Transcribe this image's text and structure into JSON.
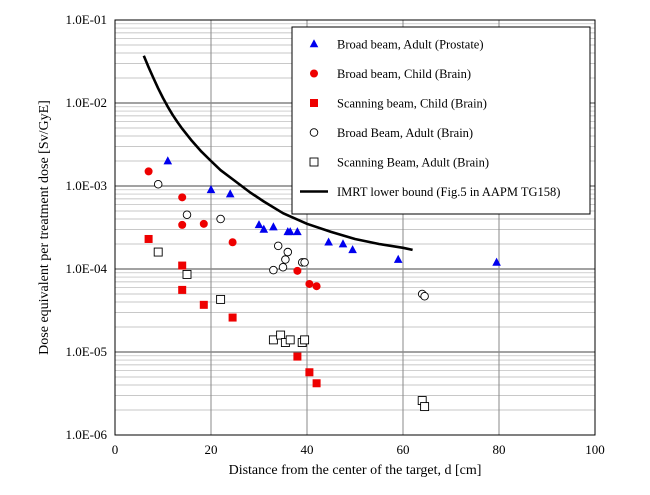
{
  "chart_data": {
    "type": "scatter",
    "title": "",
    "xlabel": "Distance from the center of the target, d [cm]",
    "ylabel": "Dose equivalent per treatment dose  [Sv/GyE]",
    "xlim": [
      0,
      100
    ],
    "ylim": [
      1e-06,
      0.1
    ],
    "yscale": "log",
    "x_ticks": [
      0,
      20,
      40,
      60,
      80,
      100
    ],
    "x_tick_labels": [
      "0",
      "20",
      "40",
      "60",
      "80",
      "100"
    ],
    "y_ticks": [
      1e-06,
      1e-05,
      0.0001,
      0.001,
      0.01,
      0.1
    ],
    "y_tick_labels": [
      "1.0E-06",
      "1.0E-05",
      "1.0E-04",
      "1.0E-03",
      "1.0E-02",
      "1.0E-01"
    ],
    "grid": true,
    "legend_position": "top-right",
    "series": [
      {
        "name": "Broad beam, Adult (Prostate)",
        "marker": "triangle-filled",
        "color": "#0000ee",
        "x": [
          11,
          20,
          24,
          30,
          31,
          33,
          36,
          36.5,
          38,
          44.5,
          47.5,
          49.5,
          59,
          79.5
        ],
        "y": [
          0.002,
          0.0009,
          0.0008,
          0.00034,
          0.0003,
          0.00032,
          0.00028,
          0.00028,
          0.00028,
          0.00021,
          0.0002,
          0.00017,
          0.00013,
          0.00012
        ]
      },
      {
        "name": "Broad beam, Child (Brain)",
        "marker": "circle-filled",
        "color": "#ee0000",
        "x": [
          7,
          14,
          14,
          18.5,
          24.5,
          38,
          40.5,
          42
        ],
        "y": [
          0.0015,
          0.00073,
          0.00034,
          0.00035,
          0.00021,
          9.5e-05,
          6.6e-05,
          6.2e-05
        ]
      },
      {
        "name": "Scanning beam, Child (Brain)",
        "marker": "square-filled",
        "color": "#ee0000",
        "x": [
          7,
          14,
          14,
          18.5,
          24.5,
          38,
          40.5,
          42
        ],
        "y": [
          0.00023,
          0.00011,
          5.6e-05,
          3.7e-05,
          2.6e-05,
          8.8e-06,
          5.7e-06,
          4.2e-06
        ]
      },
      {
        "name": "Broad Beam, Adult (Brain)",
        "marker": "circle-open",
        "color": "#000000",
        "x": [
          9,
          15,
          22,
          33,
          34,
          35,
          35.5,
          36,
          39,
          39.5,
          64,
          64.5
        ],
        "y": [
          0.00105,
          0.00045,
          0.0004,
          9.7e-05,
          0.00019,
          0.000105,
          0.00013,
          0.00016,
          0.00012,
          0.00012,
          5e-05,
          4.7e-05
        ]
      },
      {
        "name": "Scanning Beam, Adult (Brain)",
        "marker": "square-open",
        "color": "#000000",
        "x": [
          9,
          15,
          22,
          33,
          34.5,
          35.5,
          36.5,
          39,
          39.5,
          64,
          64.5
        ],
        "y": [
          0.00016,
          8.6e-05,
          4.3e-05,
          1.4e-05,
          1.6e-05,
          1.3e-05,
          1.4e-05,
          1.3e-05,
          1.4e-05,
          2.6e-06,
          2.2e-06
        ]
      },
      {
        "name": "IMRT lower bound (Fig.5 in AAPM TG158)",
        "marker": "line",
        "color": "#000000",
        "x": [
          6,
          7,
          8,
          9,
          10,
          11,
          12,
          13,
          14,
          16,
          18,
          20,
          22,
          25,
          28,
          31,
          35,
          40,
          45,
          50,
          55,
          60,
          62
        ],
        "y": [
          0.037,
          0.027,
          0.02,
          0.015,
          0.0115,
          0.009,
          0.0072,
          0.0059,
          0.0049,
          0.0035,
          0.0026,
          0.002,
          0.00155,
          0.00115,
          0.00085,
          0.00065,
          0.00047,
          0.00035,
          0.00028,
          0.00023,
          0.0002,
          0.00018,
          0.00017
        ]
      }
    ]
  }
}
